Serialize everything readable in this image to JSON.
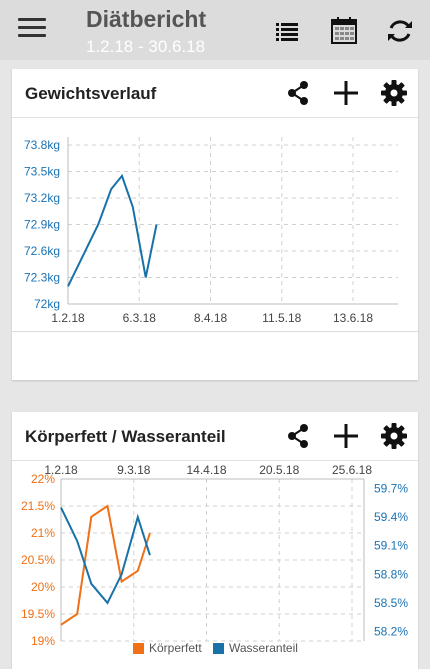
{
  "appbar": {
    "title": "Diätbericht",
    "subtitle": "1.2.18 - 30.6.18",
    "icons": [
      "menu-icon",
      "list-icon",
      "calendar-icon",
      "refresh-icon"
    ]
  },
  "weight_card": {
    "title": "Gewichtsverlauf",
    "icons": [
      "share-icon",
      "add-icon",
      "gear-icon"
    ]
  },
  "body_card": {
    "title": "Körperfett / Wasseranteil",
    "icons": [
      "share-icon",
      "add-icon",
      "gear-icon"
    ]
  },
  "colors": {
    "blue": "#1872a8",
    "orange": "#f07016",
    "axis_blue": "#1a73b5",
    "grid": "#d0d0d0"
  },
  "chart_data": [
    {
      "type": "line",
      "title": "Gewichtsverlauf",
      "x_ticks": [
        "1.2.18",
        "6.3.18",
        "8.4.18",
        "11.5.18",
        "13.6.18"
      ],
      "x_tick_days": [
        0,
        33,
        66,
        99,
        132
      ],
      "y_ticks": [
        "72kg",
        "72.3kg",
        "72.6kg",
        "72.9kg",
        "73.2kg",
        "73.5kg",
        "73.8kg"
      ],
      "ylim": [
        72,
        73.8
      ],
      "series": [
        {
          "color": "#1872a8",
          "x": [
            "1.2.18",
            "15.2.18",
            "21.2.18",
            "26.2.18",
            "3.3.18",
            "9.3.18",
            "14.3.18"
          ],
          "x_days": [
            0,
            14,
            20,
            25,
            30,
            36,
            41
          ],
          "values": [
            72.2,
            72.9,
            73.3,
            73.45,
            73.1,
            72.3,
            72.9
          ]
        }
      ]
    },
    {
      "type": "line",
      "title": "Körperfett / Wasseranteil",
      "x_ticks": [
        "1.2.18",
        "9.3.18",
        "14.4.18",
        "20.5.18",
        "25.6.18"
      ],
      "x_tick_days": [
        0,
        36,
        72,
        108,
        144
      ],
      "y_ticks_left": [
        "19%",
        "19.5%",
        "20%",
        "20.5%",
        "21%",
        "21.5%",
        "22%"
      ],
      "ylim_left": [
        19,
        22
      ],
      "y_ticks_right": [
        "58.2%",
        "58.5%",
        "58.8%",
        "59.1%",
        "59.4%",
        "59.7%"
      ],
      "ylim_right": [
        58.1,
        59.8
      ],
      "legend": [
        "Körperfett",
        "Wasseranteil"
      ],
      "legend_position": "bottom",
      "series": [
        {
          "name": "Körperfett",
          "color": "#f07016",
          "axis": "left",
          "x": [
            "1.2.18",
            "9.2.18",
            "16.2.18",
            "24.2.18",
            "3.3.18",
            "11.3.18",
            "17.3.18"
          ],
          "x_days": [
            0,
            8,
            15,
            23,
            30,
            38,
            44
          ],
          "values": [
            19.3,
            19.5,
            21.3,
            21.5,
            20.1,
            20.3,
            21.0
          ]
        },
        {
          "name": "Wasseranteil",
          "color": "#1872a8",
          "axis": "right",
          "x": [
            "1.2.18",
            "9.2.18",
            "16.2.18",
            "24.2.18",
            "3.3.18",
            "11.3.18",
            "17.3.18"
          ],
          "x_days": [
            0,
            8,
            15,
            23,
            30,
            38,
            44
          ],
          "values": [
            59.5,
            59.15,
            58.7,
            58.5,
            58.8,
            59.4,
            59.0
          ]
        }
      ]
    }
  ]
}
